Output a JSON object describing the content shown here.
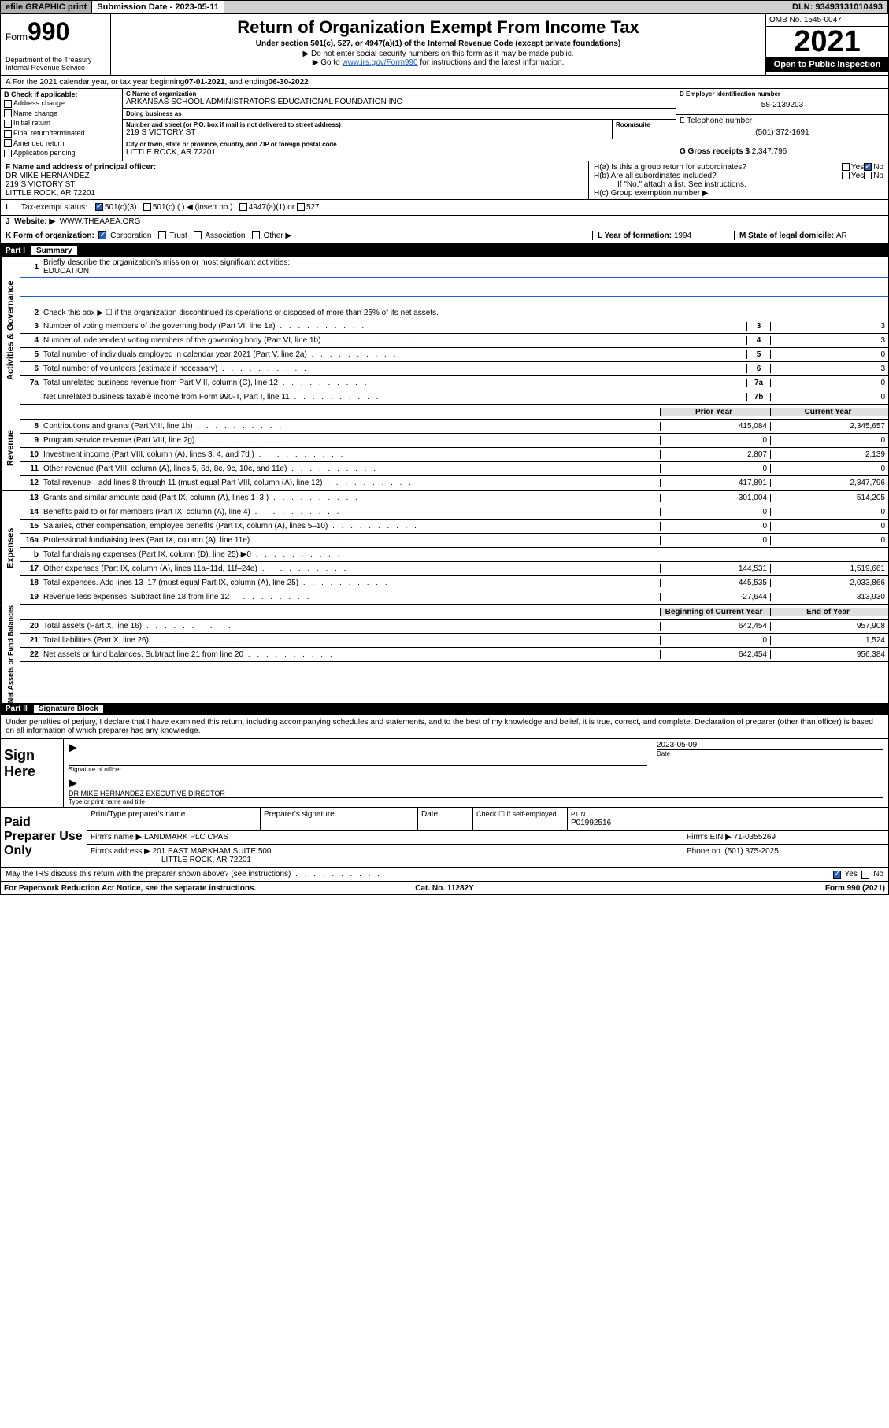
{
  "topbar": {
    "efile": "efile GRAPHIC print",
    "submission_label": "Submission Date - ",
    "submission_date": "2023-05-11",
    "dln": "DLN: 93493131010493"
  },
  "header": {
    "form_word": "Form",
    "form_num": "990",
    "dept": "Department of the Treasury\nInternal Revenue Service",
    "title": "Return of Organization Exempt From Income Tax",
    "subtitle": "Under section 501(c), 527, or 4947(a)(1) of the Internal Revenue Code (except private foundations)",
    "note1": "▶ Do not enter social security numbers on this form as it may be made public.",
    "note2_pre": "▶ Go to ",
    "note2_link": "www.irs.gov/Form990",
    "note2_post": " for instructions and the latest information.",
    "omb": "OMB No. 1545-0047",
    "year": "2021",
    "inspect": "Open to Public Inspection"
  },
  "periodA": {
    "text_pre": "A For the 2021 calendar year, or tax year beginning ",
    "begin": "07-01-2021",
    "mid": " , and ending ",
    "end": "06-30-2022"
  },
  "checkB": {
    "header": "B Check if applicable:",
    "items": [
      "Address change",
      "Name change",
      "Initial return",
      "Final return/terminated",
      "Amended return",
      "Application pending"
    ]
  },
  "org": {
    "c_label": "C Name of organization",
    "name": "ARKANSAS SCHOOL ADMINISTRATORS EDUCATIONAL FOUNDATION INC",
    "dba_label": "Doing business as",
    "addr_label": "Number and street (or P.O. box if mail is not delivered to street address)",
    "room_label": "Room/suite",
    "addr": "219 S VICTORY ST",
    "city_label": "City or town, state or province, country, and ZIP or foreign postal code",
    "city": "LITTLE ROCK, AR  72201"
  },
  "rightD": {
    "ein_label": "D Employer identification number",
    "ein": "58-2139203",
    "tel_label": "E Telephone number",
    "tel": "(501) 372-1691",
    "gross_label": "G Gross receipts $ ",
    "gross": "2,347,796"
  },
  "sectionF": {
    "label": "F Name and address of principal officer:",
    "name": "DR MIKE HERNANDEZ",
    "addr1": "219 S VICTORY ST",
    "addr2": "LITTLE ROCK, AR  72201"
  },
  "sectionH": {
    "a_label": "H(a)  Is this a group return for subordinates?",
    "yes": "Yes",
    "no": "No",
    "b_label": "H(b)  Are all subordinates included?",
    "b_note": "If \"No,\" attach a list. See instructions.",
    "c_label": "H(c)  Group exemption number ▶"
  },
  "sectionI": {
    "label": "Tax-exempt status:",
    "opt1": "501(c)(3)",
    "opt2": "501(c) (  ) ◀ (insert no.)",
    "opt3": "4947(a)(1) or",
    "opt4": "527"
  },
  "sectionJ": {
    "label": "Website: ▶",
    "val": "WWW.THEAAEA.ORG"
  },
  "sectionK": {
    "label": "K Form of organization:",
    "corp": "Corporation",
    "trust": "Trust",
    "assoc": "Association",
    "other": "Other ▶"
  },
  "sectionL": {
    "label": "L Year of formation: ",
    "val": "1994"
  },
  "sectionM": {
    "label": "M State of legal domicile: ",
    "val": "AR"
  },
  "part1": {
    "header": "Part I",
    "title": "Summary",
    "l1_label": "Briefly describe the organization's mission or most significant activities:",
    "l1_val": "EDUCATION",
    "l2": "Check this box ▶ ☐ if the organization discontinued its operations or disposed of more than 25% of its net assets.",
    "lines_gov": [
      {
        "n": "3",
        "t": "Number of voting members of the governing body (Part VI, line 1a)",
        "box": "3",
        "v": "3"
      },
      {
        "n": "4",
        "t": "Number of independent voting members of the governing body (Part VI, line 1b)",
        "box": "4",
        "v": "3"
      },
      {
        "n": "5",
        "t": "Total number of individuals employed in calendar year 2021 (Part V, line 2a)",
        "box": "5",
        "v": "0"
      },
      {
        "n": "6",
        "t": "Total number of volunteers (estimate if necessary)",
        "box": "6",
        "v": "3"
      },
      {
        "n": "7a",
        "t": "Total unrelated business revenue from Part VIII, column (C), line 12",
        "box": "7a",
        "v": "0"
      },
      {
        "n": "",
        "t": "Net unrelated business taxable income from Form 990-T, Part I, line 11",
        "box": "7b",
        "v": "0"
      }
    ],
    "hdr_prior": "Prior Year",
    "hdr_cur": "Current Year",
    "revenue": [
      {
        "n": "8",
        "t": "Contributions and grants (Part VIII, line 1h)",
        "p": "415,084",
        "c": "2,345,657"
      },
      {
        "n": "9",
        "t": "Program service revenue (Part VIII, line 2g)",
        "p": "0",
        "c": "0"
      },
      {
        "n": "10",
        "t": "Investment income (Part VIII, column (A), lines 3, 4, and 7d )",
        "p": "2,807",
        "c": "2,139"
      },
      {
        "n": "11",
        "t": "Other revenue (Part VIII, column (A), lines 5, 6d, 8c, 9c, 10c, and 11e)",
        "p": "0",
        "c": "0"
      },
      {
        "n": "12",
        "t": "Total revenue—add lines 8 through 11 (must equal Part VIII, column (A), line 12)",
        "p": "417,891",
        "c": "2,347,796"
      }
    ],
    "expenses": [
      {
        "n": "13",
        "t": "Grants and similar amounts paid (Part IX, column (A), lines 1–3 )",
        "p": "301,004",
        "c": "514,205"
      },
      {
        "n": "14",
        "t": "Benefits paid to or for members (Part IX, column (A), line 4)",
        "p": "0",
        "c": "0"
      },
      {
        "n": "15",
        "t": "Salaries, other compensation, employee benefits (Part IX, column (A), lines 5–10)",
        "p": "0",
        "c": "0"
      },
      {
        "n": "16a",
        "t": "Professional fundraising fees (Part IX, column (A), line 11e)",
        "p": "0",
        "c": "0"
      },
      {
        "n": "b",
        "t": "Total fundraising expenses (Part IX, column (D), line 25) ▶0",
        "p": "",
        "c": "",
        "gray": true
      },
      {
        "n": "17",
        "t": "Other expenses (Part IX, column (A), lines 11a–11d, 11f–24e)",
        "p": "144,531",
        "c": "1,519,661"
      },
      {
        "n": "18",
        "t": "Total expenses. Add lines 13–17 (must equal Part IX, column (A), line 25)",
        "p": "445,535",
        "c": "2,033,866"
      },
      {
        "n": "19",
        "t": "Revenue less expenses. Subtract line 18 from line 12",
        "p": "-27,644",
        "c": "313,930"
      }
    ],
    "hdr_begin": "Beginning of Current Year",
    "hdr_end": "End of Year",
    "netassets": [
      {
        "n": "20",
        "t": "Total assets (Part X, line 16)",
        "p": "642,454",
        "c": "957,908"
      },
      {
        "n": "21",
        "t": "Total liabilities (Part X, line 26)",
        "p": "0",
        "c": "1,524"
      },
      {
        "n": "22",
        "t": "Net assets or fund balances. Subtract line 21 from line 20",
        "p": "642,454",
        "c": "956,384"
      }
    ],
    "side_gov": "Activities & Governance",
    "side_rev": "Revenue",
    "side_exp": "Expenses",
    "side_net": "Net Assets or Fund Balances"
  },
  "part2": {
    "header": "Part II",
    "title": "Signature Block",
    "decl": "Under penalties of perjury, I declare that I have examined this return, including accompanying schedules and statements, and to the best of my knowledge and belief, it is true, correct, and complete. Declaration of preparer (other than officer) is based on all information of which preparer has any knowledge.",
    "sign_here": "Sign Here",
    "sig_officer": "Signature of officer",
    "sig_date_label": "Date",
    "sig_date": "2023-05-09",
    "sig_name": "DR MIKE HERNANDEZ  EXECUTIVE DIRECTOR",
    "sig_name_label": "Type or print name and title",
    "paid": "Paid Preparer Use Only",
    "prep_name_label": "Print/Type preparer's name",
    "prep_sig_label": "Preparer's signature",
    "date_label": "Date",
    "check_self": "Check ☐ if self-employed",
    "ptin_label": "PTIN",
    "ptin": "P01992516",
    "firm_name_label": "Firm's name    ▶ ",
    "firm_name": "LANDMARK PLC CPAS",
    "firm_ein_label": "Firm's EIN ▶ ",
    "firm_ein": "71-0355269",
    "firm_addr_label": "Firm's address ▶ ",
    "firm_addr1": "201 EAST MARKHAM SUITE 500",
    "firm_addr2": "LITTLE ROCK, AR  72201",
    "phone_label": "Phone no. ",
    "phone": "(501) 375-2025",
    "discuss": "May the IRS discuss this return with the preparer shown above? (see instructions)"
  },
  "footer": {
    "l": "For Paperwork Reduction Act Notice, see the separate instructions.",
    "m": "Cat. No. 11282Y",
    "r": "Form 990 (2021)"
  }
}
